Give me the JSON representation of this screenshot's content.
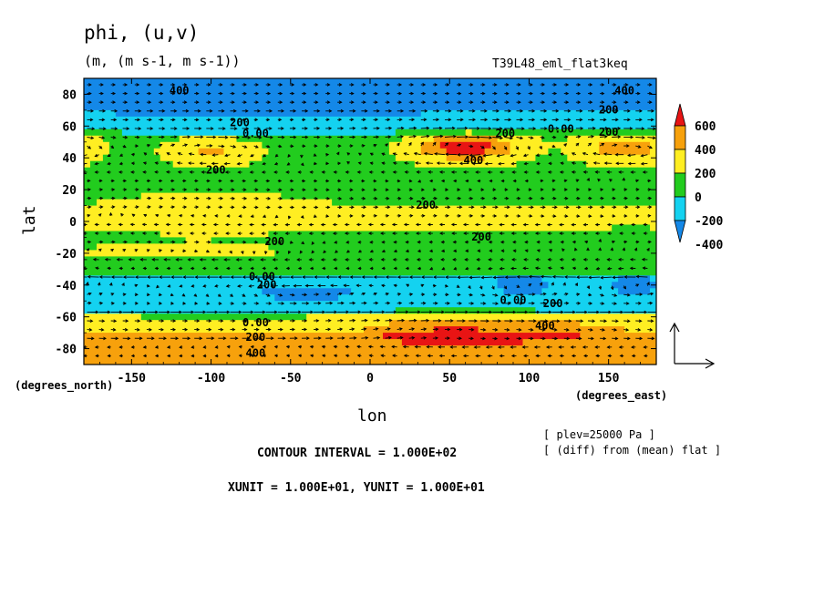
{
  "chart_data": {
    "type": "heatmap",
    "title": "phi, (u,v)",
    "units": "(m, (m s-1, m s-1))",
    "run_label": "T39L48_eml_flat3keq",
    "xlabel": "lon",
    "ylabel": "lat",
    "x_unit_label": "(degrees_east)",
    "y_unit_label": "(degrees_north)",
    "xlim": [
      -180,
      180
    ],
    "ylim": [
      -90,
      90
    ],
    "x_ticks": [
      "-150",
      "-100",
      "-50",
      "0",
      "50",
      "100",
      "150"
    ],
    "x_tick_values": [
      -150,
      -100,
      -50,
      0,
      50,
      100,
      150
    ],
    "y_ticks": [
      "80",
      "60",
      "40",
      "20",
      "0",
      "-20",
      "-40",
      "-60",
      "-80"
    ],
    "y_tick_values": [
      80,
      60,
      40,
      20,
      0,
      -20,
      -40,
      -60,
      -80
    ],
    "colorbar": {
      "labels": [
        "600",
        "400",
        "200",
        "0",
        "-200",
        "-400"
      ],
      "levels": [
        {
          "range": [
            500,
            700
          ],
          "color": "#e81414"
        },
        {
          "range": [
            300,
            500
          ],
          "color": "#f7a10c"
        },
        {
          "range": [
            100,
            300
          ],
          "color": "#ffee22"
        },
        {
          "range": [
            -100,
            100
          ],
          "color": "#22cc1e"
        },
        {
          "range": [
            -300,
            -100
          ],
          "color": "#14d2f0"
        },
        {
          "range": [
            -500,
            -300
          ],
          "color": "#1488e8"
        }
      ]
    },
    "contour_labels": [
      {
        "text": "400",
        "lon": -120,
        "lat": 82
      },
      {
        "text": "400",
        "lon": 160,
        "lat": 82
      },
      {
        "text": "200",
        "lon": -82,
        "lat": 62
      },
      {
        "text": "200",
        "lon": 150,
        "lat": 70
      },
      {
        "text": "0.00",
        "lon": -72,
        "lat": 55
      },
      {
        "text": "0.00",
        "lon": 120,
        "lat": 58
      },
      {
        "text": "200",
        "lon": -97,
        "lat": 32
      },
      {
        "text": "200",
        "lon": 150,
        "lat": 56
      },
      {
        "text": "200",
        "lon": 85,
        "lat": 55
      },
      {
        "text": "400",
        "lon": 65,
        "lat": 38
      },
      {
        "text": "200",
        "lon": 35,
        "lat": 10
      },
      {
        "text": "200",
        "lon": 70,
        "lat": -10
      },
      {
        "text": "200",
        "lon": -60,
        "lat": -13
      },
      {
        "text": "0.00",
        "lon": -68,
        "lat": -35
      },
      {
        "text": "200",
        "lon": -65,
        "lat": -40
      },
      {
        "text": "0.00",
        "lon": 90,
        "lat": -50
      },
      {
        "text": "200",
        "lon": 115,
        "lat": -52
      },
      {
        "text": "400",
        "lon": 110,
        "lat": -66
      },
      {
        "text": "0.00",
        "lon": -72,
        "lat": -64
      },
      {
        "text": "200",
        "lon": -72,
        "lat": -73
      },
      {
        "text": "400",
        "lon": -72,
        "lat": -83
      }
    ],
    "features": [
      {
        "kind": "band",
        "desc": "northern polar low",
        "lat_range": [
          72,
          90
        ],
        "value": "-400"
      },
      {
        "kind": "ridge",
        "lon": -100,
        "lat": 45,
        "value": "400"
      },
      {
        "kind": "ridge",
        "lon": 60,
        "lat": 47,
        "value": "600"
      },
      {
        "kind": "ridge",
        "lon": 160,
        "lat": 46,
        "value": "400"
      },
      {
        "kind": "low",
        "lon": 95,
        "lat": -40,
        "value": "-400"
      },
      {
        "kind": "low",
        "lon": -40,
        "lat": -45,
        "value": "-400"
      },
      {
        "kind": "band",
        "desc": "southern polar high",
        "lat_range": [
          -90,
          -70
        ],
        "value": "400"
      }
    ],
    "grid": false
  },
  "footer": {
    "plev": "[ plev=25000 Pa ]",
    "diff": "[ (diff) from (mean) flat ]",
    "contour_interval": "CONTOUR INTERVAL = 1.000E+02",
    "xyunit": "XUNIT = 1.000E+01, YUNIT = 1.000E+01"
  },
  "colors": {
    "red": "#e81414",
    "orange": "#f7a10c",
    "yellow": "#ffee22",
    "green": "#22cc1e",
    "cyan": "#14d2f0",
    "blue": "#1488e8"
  }
}
